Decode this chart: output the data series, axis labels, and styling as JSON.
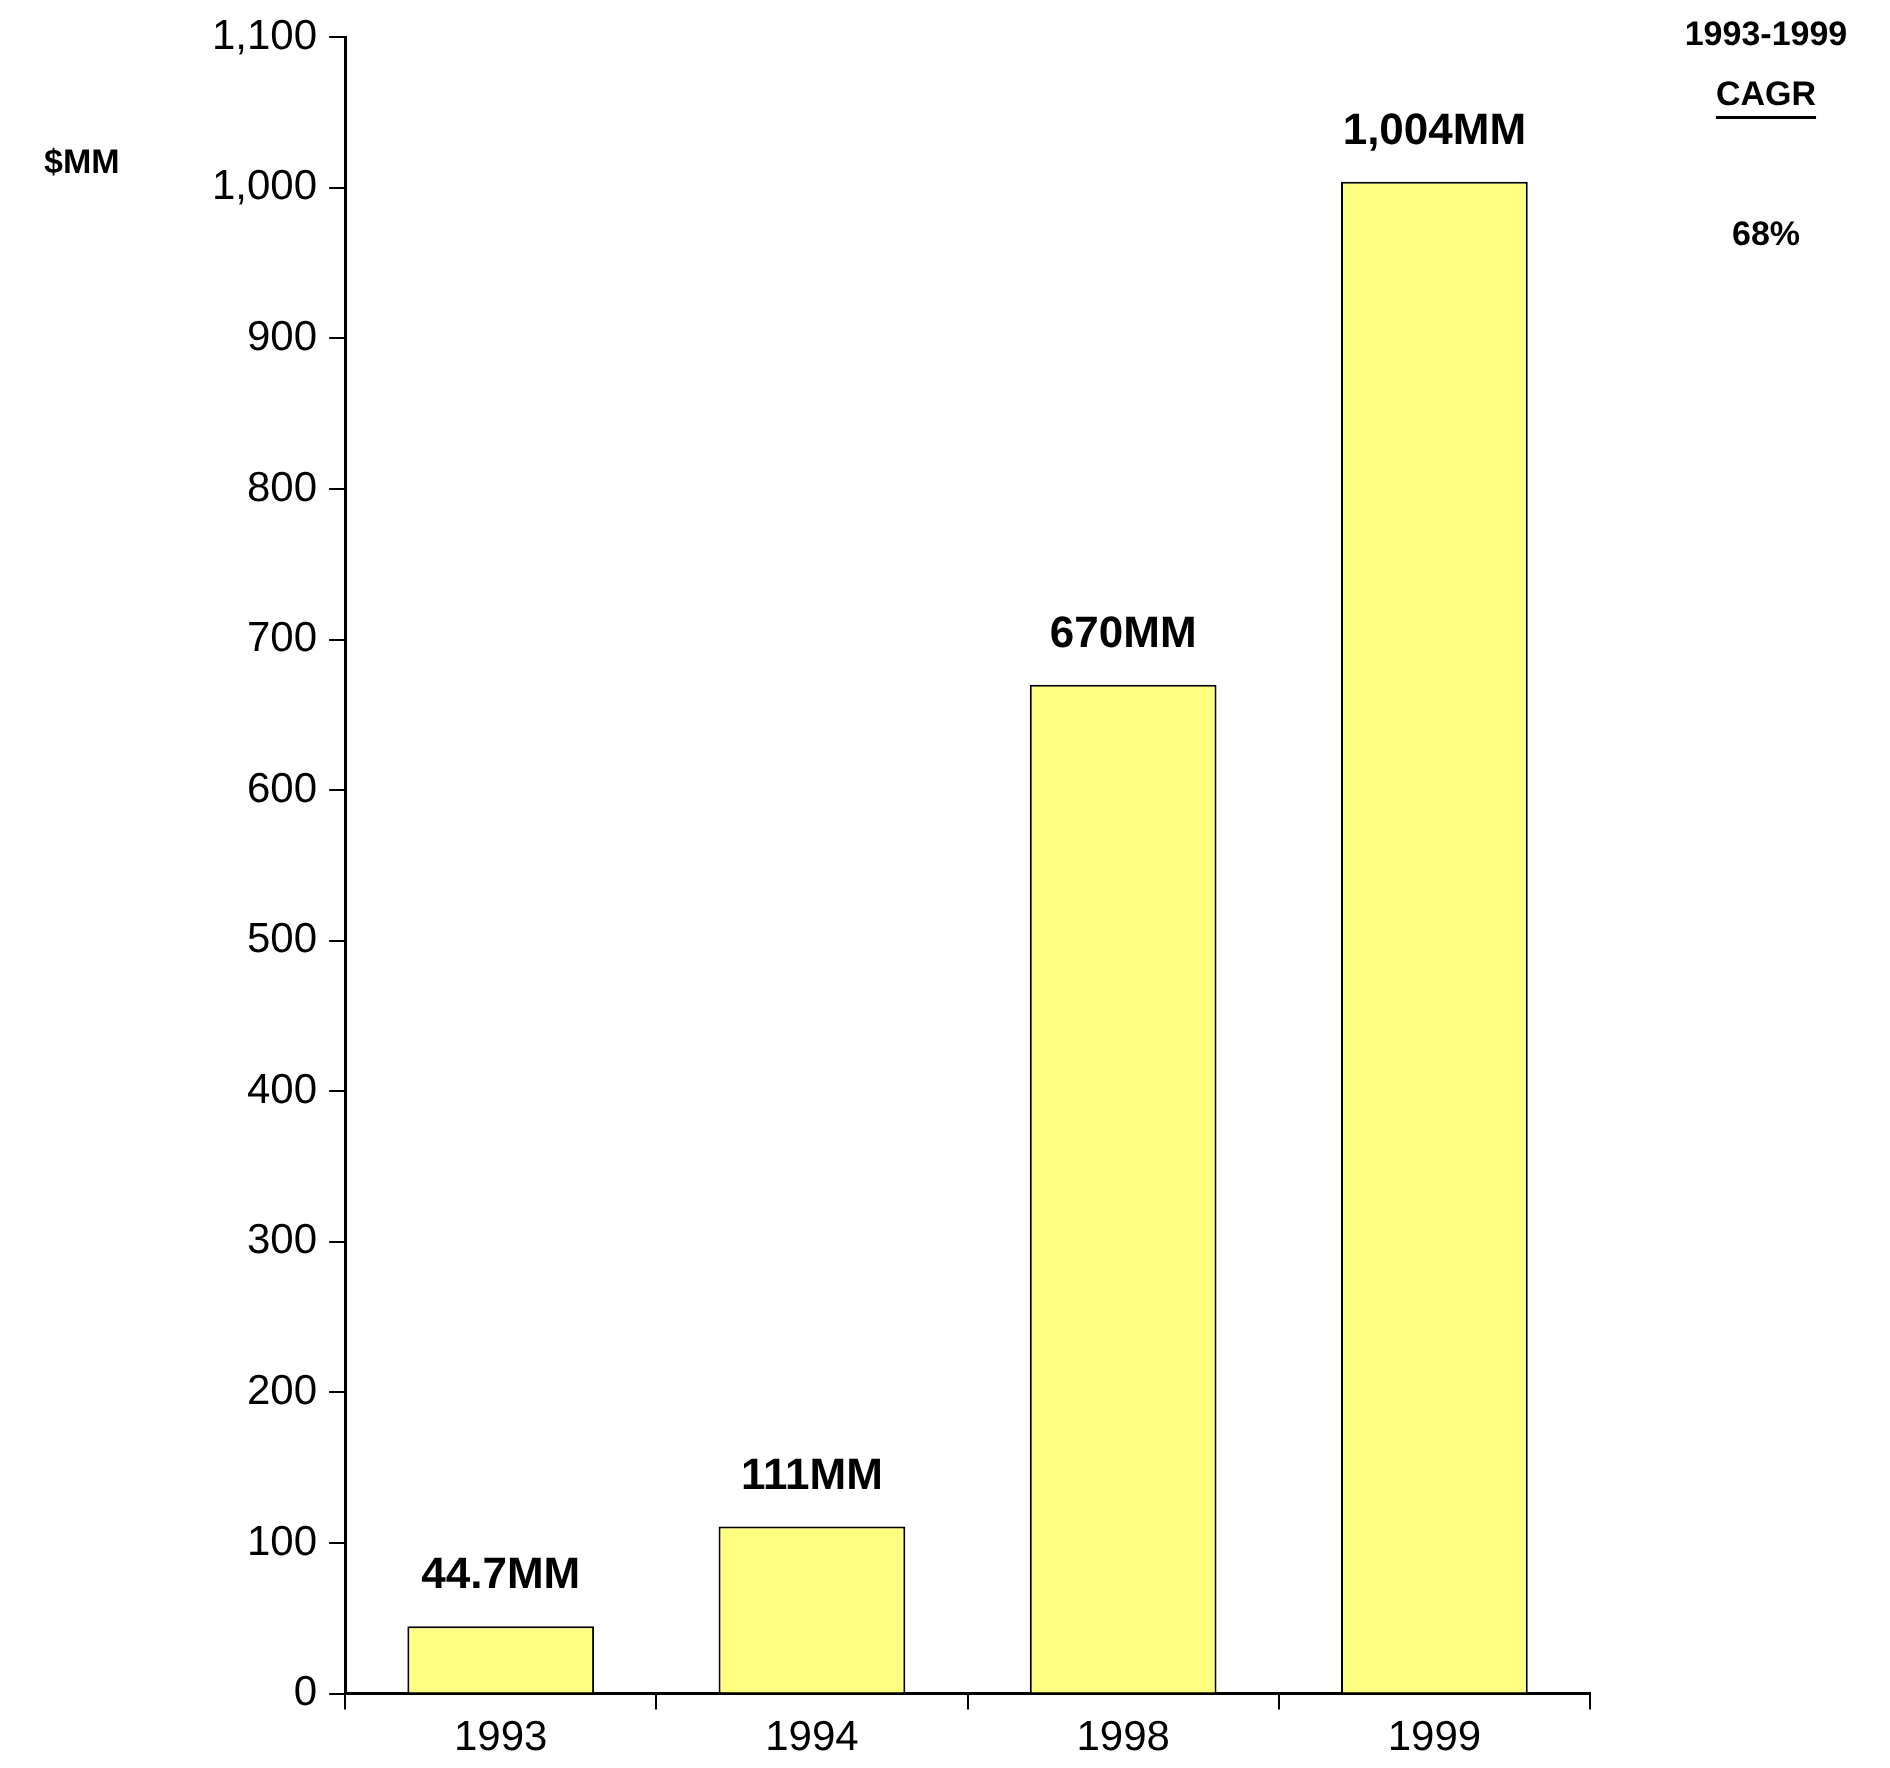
{
  "chart_data": {
    "type": "bar",
    "ylabel": "$MM",
    "categories": [
      "1993",
      "1994",
      "1998",
      "1999"
    ],
    "values": [
      44.7,
      111,
      670,
      1004
    ],
    "value_labels": [
      "44.7MM",
      "111MM",
      "670MM",
      "1,004MM"
    ],
    "color": "#ffff80",
    "ylim": [
      0,
      1100
    ],
    "yticks": [
      0,
      100,
      200,
      300,
      400,
      500,
      600,
      700,
      800,
      900,
      {
        "value": 1000,
        "label": "1,000"
      },
      {
        "value": 1100,
        "label": "1,100"
      }
    ],
    "grid": false,
    "legend": false,
    "annotations": [
      "1993-1999",
      "CAGR",
      "68%"
    ]
  }
}
